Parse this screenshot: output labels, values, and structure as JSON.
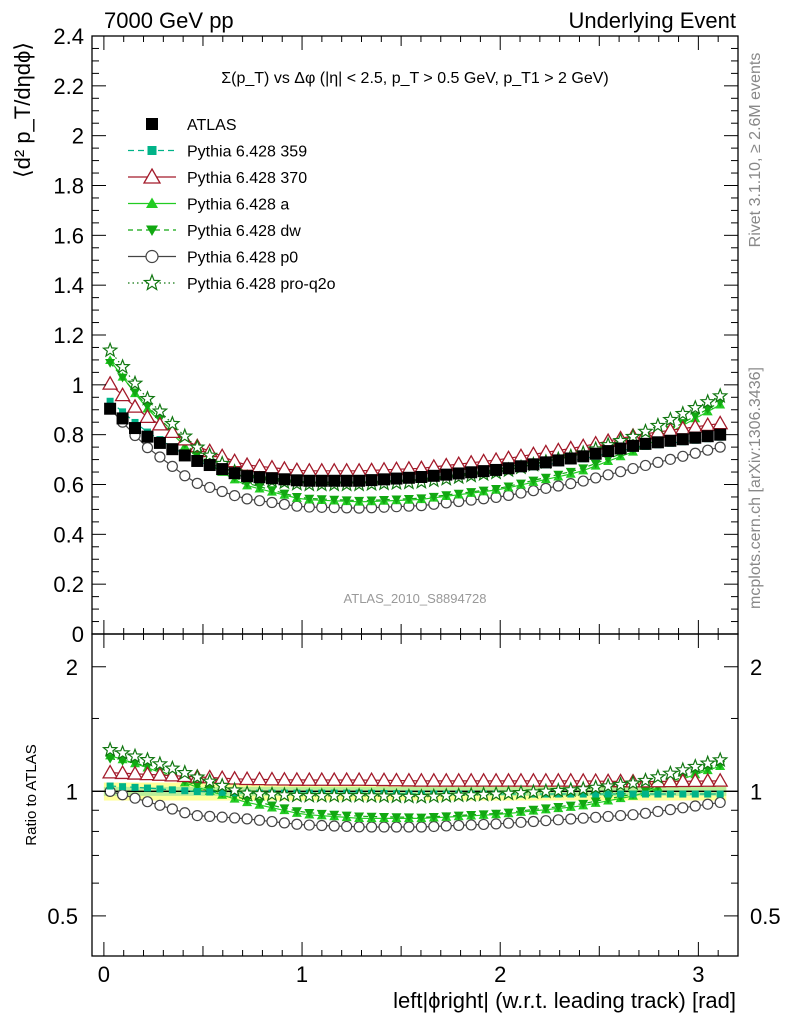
{
  "header": {
    "left_title": "7000 GeV pp",
    "right_title": "Underlying Event"
  },
  "side_labels": {
    "top": "Rivet 3.1.10, ≥ 2.6M events",
    "bottom": "mcplots.cern.ch [arXiv:1306.3436]"
  },
  "watermark": "ATLAS_2010_S8894728",
  "colors": {
    "data": "#000000",
    "p359": "#00b388",
    "p370": "#a31a2a",
    "pa": "#22cc22",
    "pdw": "#11a811",
    "pp0": "#444444",
    "pq2o": "#117711",
    "band_outer": "#ffff99",
    "band_inner": "#bbee99"
  },
  "chart_data": [
    {
      "type": "scatter",
      "title": "Σ(p_T) vs Δφ (|η| < 2.5, p_T > 0.5 GeV, p_T1 > 2 GeV)",
      "xlabel": "left|ϕright| (w.r.t. leading track) [rad]",
      "ylabel": "⟨d² p_T/dηdϕ⟩",
      "xlim": [
        -0.06,
        3.2
      ],
      "ylim": [
        0,
        2.4
      ],
      "yticks": [
        "0",
        "0.2",
        "0.4",
        "0.6",
        "0.8",
        "1",
        "1.2",
        "1.4",
        "1.6",
        "1.8",
        "2",
        "2.2",
        "2.4"
      ],
      "xticks": [
        "0",
        "1",
        "2",
        "3"
      ],
      "legend_position": "top-left",
      "x_points": 50,
      "x_range": [
        0.0314,
        3.11
      ],
      "series": [
        {
          "key": "data",
          "name": "ATLAS",
          "knots": [
            [
              0.03,
              0.905
            ],
            [
              0.2,
              0.8
            ],
            [
              0.45,
              0.7
            ],
            [
              0.7,
              0.635
            ],
            [
              1.0,
              0.615
            ],
            [
              1.3,
              0.615
            ],
            [
              1.6,
              0.63
            ],
            [
              2.0,
              0.66
            ],
            [
              2.4,
              0.71
            ],
            [
              2.7,
              0.76
            ],
            [
              3.11,
              0.8
            ]
          ]
        },
        {
          "key": "p359",
          "name": "Pythia 6.428 359",
          "knots": [
            [
              0.03,
              0.935
            ],
            [
              0.2,
              0.82
            ],
            [
              0.45,
              0.7
            ],
            [
              0.7,
              0.63
            ],
            [
              1.0,
              0.61
            ],
            [
              1.3,
              0.61
            ],
            [
              1.6,
              0.62
            ],
            [
              2.0,
              0.65
            ],
            [
              2.4,
              0.7
            ],
            [
              2.7,
              0.75
            ],
            [
              3.11,
              0.79
            ]
          ]
        },
        {
          "key": "p370",
          "name": "Pythia 6.428 370",
          "knots": [
            [
              0.03,
              1.005
            ],
            [
              0.2,
              0.88
            ],
            [
              0.45,
              0.76
            ],
            [
              0.7,
              0.68
            ],
            [
              1.0,
              0.655
            ],
            [
              1.3,
              0.655
            ],
            [
              1.6,
              0.665
            ],
            [
              2.0,
              0.7
            ],
            [
              2.4,
              0.75
            ],
            [
              2.7,
              0.8
            ],
            [
              3.11,
              0.845
            ]
          ]
        },
        {
          "key": "pa",
          "name": "Pythia 6.428 a",
          "knots": [
            [
              0.03,
              1.1
            ],
            [
              0.2,
              0.92
            ],
            [
              0.45,
              0.72
            ],
            [
              0.7,
              0.6
            ],
            [
              1.0,
              0.54
            ],
            [
              1.3,
              0.53
            ],
            [
              1.6,
              0.54
            ],
            [
              2.0,
              0.58
            ],
            [
              2.4,
              0.65
            ],
            [
              2.7,
              0.74
            ],
            [
              3.11,
              0.92
            ]
          ]
        },
        {
          "key": "pdw",
          "name": "Pythia 6.428 dw",
          "knots": [
            [
              0.03,
              1.09
            ],
            [
              0.2,
              0.93
            ],
            [
              0.45,
              0.73
            ],
            [
              0.7,
              0.61
            ],
            [
              1.0,
              0.545
            ],
            [
              1.3,
              0.535
            ],
            [
              1.6,
              0.545
            ],
            [
              2.0,
              0.585
            ],
            [
              2.4,
              0.66
            ],
            [
              2.7,
              0.75
            ],
            [
              3.11,
              0.93
            ]
          ]
        },
        {
          "key": "pp0",
          "name": "Pythia 6.428 p0",
          "knots": [
            [
              0.03,
              0.905
            ],
            [
              0.2,
              0.76
            ],
            [
              0.45,
              0.61
            ],
            [
              0.7,
              0.545
            ],
            [
              1.0,
              0.51
            ],
            [
              1.3,
              0.505
            ],
            [
              1.6,
              0.515
            ],
            [
              2.0,
              0.55
            ],
            [
              2.4,
              0.61
            ],
            [
              2.7,
              0.67
            ],
            [
              3.11,
              0.75
            ]
          ]
        },
        {
          "key": "pq2o",
          "name": "Pythia 6.428 pro-q2o",
          "knots": [
            [
              0.03,
              1.14
            ],
            [
              0.2,
              0.96
            ],
            [
              0.45,
              0.76
            ],
            [
              0.7,
              0.63
            ],
            [
              1.0,
              0.6
            ],
            [
              1.3,
              0.6
            ],
            [
              1.6,
              0.61
            ],
            [
              2.0,
              0.65
            ],
            [
              2.4,
              0.72
            ],
            [
              2.7,
              0.8
            ],
            [
              3.11,
              0.955
            ]
          ]
        }
      ]
    },
    {
      "type": "scatter",
      "title": "",
      "xlabel": "left|ϕright| (w.r.t. leading track) [rad]",
      "ylabel": "Ratio to ATLAS",
      "ylim": [
        0.4,
        2.4
      ],
      "yscale": "log",
      "yticks": [
        "0.5",
        "1",
        "2"
      ],
      "band": {
        "outer": [
          0.95,
          1.05
        ],
        "inner": [
          0.975,
          1.025
        ]
      },
      "series": [
        {
          "key": "p359",
          "knots": [
            [
              0.03,
              1.03
            ],
            [
              0.2,
              1.02
            ],
            [
              0.45,
              1.0
            ],
            [
              0.7,
              0.99
            ],
            [
              1.0,
              0.99
            ],
            [
              1.3,
              0.99
            ],
            [
              1.6,
              0.985
            ],
            [
              2.0,
              0.985
            ],
            [
              2.4,
              0.985
            ],
            [
              2.7,
              0.985
            ],
            [
              3.11,
              0.985
            ]
          ]
        },
        {
          "key": "p370",
          "knots": [
            [
              0.03,
              1.11
            ],
            [
              0.2,
              1.1
            ],
            [
              0.45,
              1.085
            ],
            [
              0.7,
              1.07
            ],
            [
              1.0,
              1.065
            ],
            [
              1.3,
              1.065
            ],
            [
              1.6,
              1.06
            ],
            [
              2.0,
              1.06
            ],
            [
              2.4,
              1.06
            ],
            [
              2.7,
              1.055
            ],
            [
              3.11,
              1.06
            ]
          ]
        },
        {
          "key": "pa",
          "knots": [
            [
              0.03,
              1.22
            ],
            [
              0.2,
              1.15
            ],
            [
              0.45,
              1.03
            ],
            [
              0.7,
              0.945
            ],
            [
              1.0,
              0.88
            ],
            [
              1.3,
              0.86
            ],
            [
              1.6,
              0.86
            ],
            [
              2.0,
              0.88
            ],
            [
              2.4,
              0.92
            ],
            [
              2.7,
              0.98
            ],
            [
              3.11,
              1.15
            ]
          ]
        },
        {
          "key": "pdw",
          "knots": [
            [
              0.03,
              1.2
            ],
            [
              0.2,
              1.16
            ],
            [
              0.45,
              1.04
            ],
            [
              0.7,
              0.96
            ],
            [
              1.0,
              0.89
            ],
            [
              1.3,
              0.87
            ],
            [
              1.6,
              0.865
            ],
            [
              2.0,
              0.885
            ],
            [
              2.4,
              0.93
            ],
            [
              2.7,
              0.99
            ],
            [
              3.11,
              1.16
            ]
          ]
        },
        {
          "key": "pp0",
          "knots": [
            [
              0.03,
              1.0
            ],
            [
              0.2,
              0.95
            ],
            [
              0.45,
              0.875
            ],
            [
              0.7,
              0.86
            ],
            [
              1.0,
              0.83
            ],
            [
              1.3,
              0.82
            ],
            [
              1.6,
              0.82
            ],
            [
              2.0,
              0.835
            ],
            [
              2.4,
              0.86
            ],
            [
              2.7,
              0.88
            ],
            [
              3.11,
              0.94
            ]
          ]
        },
        {
          "key": "pq2o",
          "knots": [
            [
              0.03,
              1.26
            ],
            [
              0.2,
              1.2
            ],
            [
              0.45,
              1.09
            ],
            [
              0.7,
              0.99
            ],
            [
              1.0,
              0.975
            ],
            [
              1.3,
              0.975
            ],
            [
              1.6,
              0.97
            ],
            [
              2.0,
              0.985
            ],
            [
              2.4,
              1.01
            ],
            [
              2.7,
              1.05
            ],
            [
              3.11,
              1.19
            ]
          ]
        }
      ]
    }
  ]
}
